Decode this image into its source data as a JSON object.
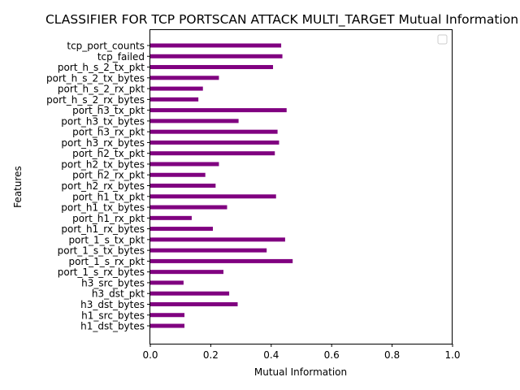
{
  "chart_data": {
    "type": "bar",
    "orientation": "horizontal",
    "title": "CLASSIFIER FOR TCP PORTSCAN ATTACK MULTI_TARGET Mutual Information",
    "xlabel": "Mutual Information",
    "ylabel": "Features",
    "xlim": [
      0,
      1.0
    ],
    "xticks": [
      "0.0",
      "0.2",
      "0.4",
      "0.6",
      "0.8",
      "1.0"
    ],
    "bar_color": "#800080",
    "grid": false,
    "legend": "top-right, empty",
    "categories": [
      "tcp_port_counts",
      "tcp_failed",
      "port_h_s_2_tx_pkt",
      "port_h_s_2_tx_bytes",
      "port_h_s_2_rx_pkt",
      "port_h_s_2_rx_bytes",
      "port_h3_tx_pkt",
      "port_h3_tx_bytes",
      "port_h3_rx_pkt",
      "port_h3_rx_bytes",
      "port_h2_tx_pkt",
      "port_h2_tx_bytes",
      "port_h2_rx_pkt",
      "port_h2_rx_bytes",
      "port_h1_tx_pkt",
      "port_h1_tx_bytes",
      "port_h1_rx_pkt",
      "port_h1_rx_bytes",
      "port_1_s_tx_pkt",
      "port_1_s_tx_bytes",
      "port_1_s_rx_pkt",
      "port_1_s_rx_bytes",
      "h3_src_bytes",
      "h3_dst_pkt",
      "h3_dst_bytes",
      "h1_src_bytes",
      "h1_dst_bytes"
    ],
    "values": [
      0.433,
      0.437,
      0.406,
      0.227,
      0.174,
      0.159,
      0.451,
      0.292,
      0.421,
      0.426,
      0.412,
      0.227,
      0.182,
      0.216,
      0.416,
      0.254,
      0.137,
      0.207,
      0.446,
      0.385,
      0.471,
      0.242,
      0.11,
      0.261,
      0.289,
      0.113,
      0.113
    ]
  }
}
